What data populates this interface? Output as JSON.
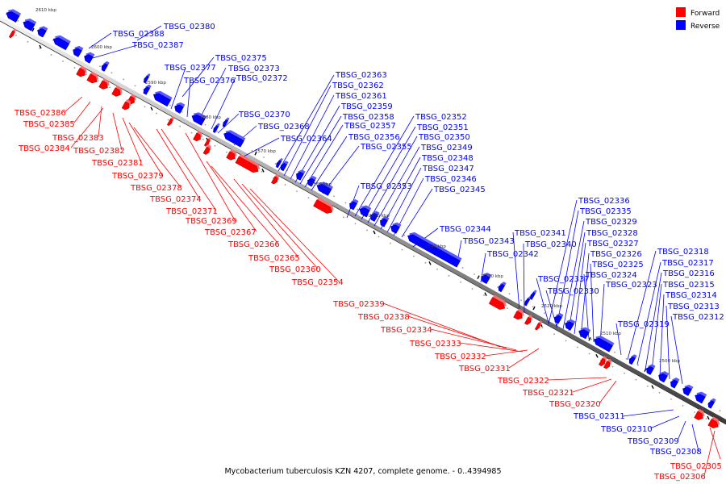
{
  "caption": "Mycobacterium tuberculosis KZN 4207, complete genome. - 0..4394985",
  "legend": {
    "forward_label": "Forward",
    "reverse_label": "Reverse",
    "forward_color": "#ff0000",
    "reverse_color": "#0000ff"
  },
  "colors": {
    "forward": "#ff0000",
    "reverse": "#0000ff",
    "axis": "#555555",
    "leader_forward": "#ff0000",
    "leader_reverse": "#0000ff"
  },
  "ticks": [
    "2610 kbp",
    "2600 kbp",
    "2590 kbp",
    "2580 kbp",
    "2570 kbp",
    "2560 kbp",
    "2550 kbp",
    "2540 kbp",
    "2530 kbp",
    "2520 kbp",
    "2510 kbp",
    "2500 kbp"
  ],
  "reverse_genes": [
    "TBSG_02380",
    "TBSG_02388",
    "TBSG_02387",
    "TBSG_02375",
    "TBSG_02377",
    "TBSG_02373",
    "TBSG_02376",
    "TBSG_02372",
    "TBSG_02370",
    "TBSG_02368",
    "TBSG_02364",
    "TBSG_02363",
    "TBSG_02362",
    "TBSG_02361",
    "TBSG_02359",
    "TBSG_02358",
    "TBSG_02357",
    "TBSG_02356",
    "TBSG_02355",
    "TBSG_02353",
    "TBSG_02352",
    "TBSG_02351",
    "TBSG_02350",
    "TBSG_02349",
    "TBSG_02348",
    "TBSG_02347",
    "TBSG_02346",
    "TBSG_02345",
    "TBSG_02344",
    "TBSG_02343",
    "TBSG_02342",
    "TBSG_02341",
    "TBSG_02340",
    "TBSG_02337",
    "TBSG_02330",
    "TBSG_02336",
    "TBSG_02335",
    "TBSG_02329",
    "TBSG_02328",
    "TBSG_02327",
    "TBSG_02326",
    "TBSG_02324",
    "TBSG_02325",
    "TBSG_02323",
    "TBSG_02319",
    "TBSG_02318",
    "TBSG_02317",
    "TBSG_02316",
    "TBSG_02315",
    "TBSG_02314",
    "TBSG_02313",
    "TBSG_02312",
    "TBSG_02311",
    "TBSG_02310",
    "TBSG_02309",
    "TBSG_02308"
  ],
  "forward_genes": [
    "TBSG_02386",
    "TBSG_02385",
    "TBSG_02383",
    "TBSG_02384",
    "TBSG_02382",
    "TBSG_02381",
    "TBSG_02379",
    "TBSG_02378",
    "TBSG_02374",
    "TBSG_02371",
    "TBSG_02369",
    "TBSG_02367",
    "TBSG_02366",
    "TBSG_02365",
    "TBSG_02360",
    "TBSG_02354",
    "TBSG_02339",
    "TBSG_02338",
    "TBSG_02334",
    "TBSG_02333",
    "TBSG_02332",
    "TBSG_02331",
    "TBSG_02322",
    "TBSG_02321",
    "TBSG_02320",
    "TBSG_02305",
    "TBSG_02306"
  ]
}
